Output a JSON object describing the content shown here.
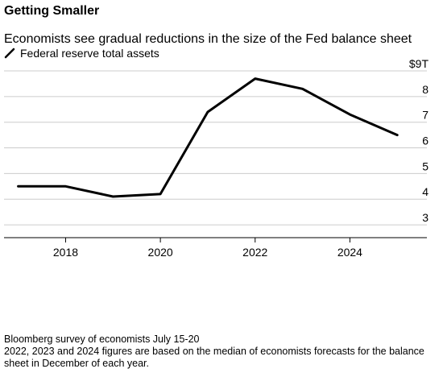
{
  "header": {
    "title": "Getting Smaller",
    "subtitle": "Economists see gradual reductions in the size of the Fed balance sheet"
  },
  "legend": {
    "label": "Federal reserve total assets",
    "icon": "line-legend-icon"
  },
  "footer": {
    "source": "Bloomberg survey of economists July 15-20",
    "note": "2022, 2023 and 2024 figures are based on the median of economists forecasts for the balance sheet in December of each year."
  },
  "colors": {
    "line": "#000000",
    "grid": "#cccccc",
    "axis": "#000000"
  },
  "chart_data": {
    "type": "line",
    "title": "",
    "xlabel": "",
    "ylabel": "",
    "x": [
      2017,
      2018,
      2019,
      2020,
      2021,
      2022,
      2023,
      2024,
      2025
    ],
    "series": [
      {
        "name": "Federal reserve total assets",
        "values": [
          4.5,
          4.5,
          4.1,
          4.2,
          7.4,
          8.7,
          8.3,
          7.3,
          6.5
        ]
      }
    ],
    "xlim": [
      2016.7,
      2025.2
    ],
    "ylim": [
      2.5,
      9
    ],
    "x_ticks": [
      2018,
      2020,
      2022,
      2024
    ],
    "x_tick_labels": [
      "2018",
      "2020",
      "2022",
      "2024"
    ],
    "y_ticks": [
      3,
      4,
      5,
      6,
      7,
      8,
      9
    ],
    "y_tick_labels": [
      "3",
      "4",
      "5",
      "6",
      "7",
      "8",
      "$9T"
    ],
    "grid": true,
    "legend_position": "top-left"
  }
}
